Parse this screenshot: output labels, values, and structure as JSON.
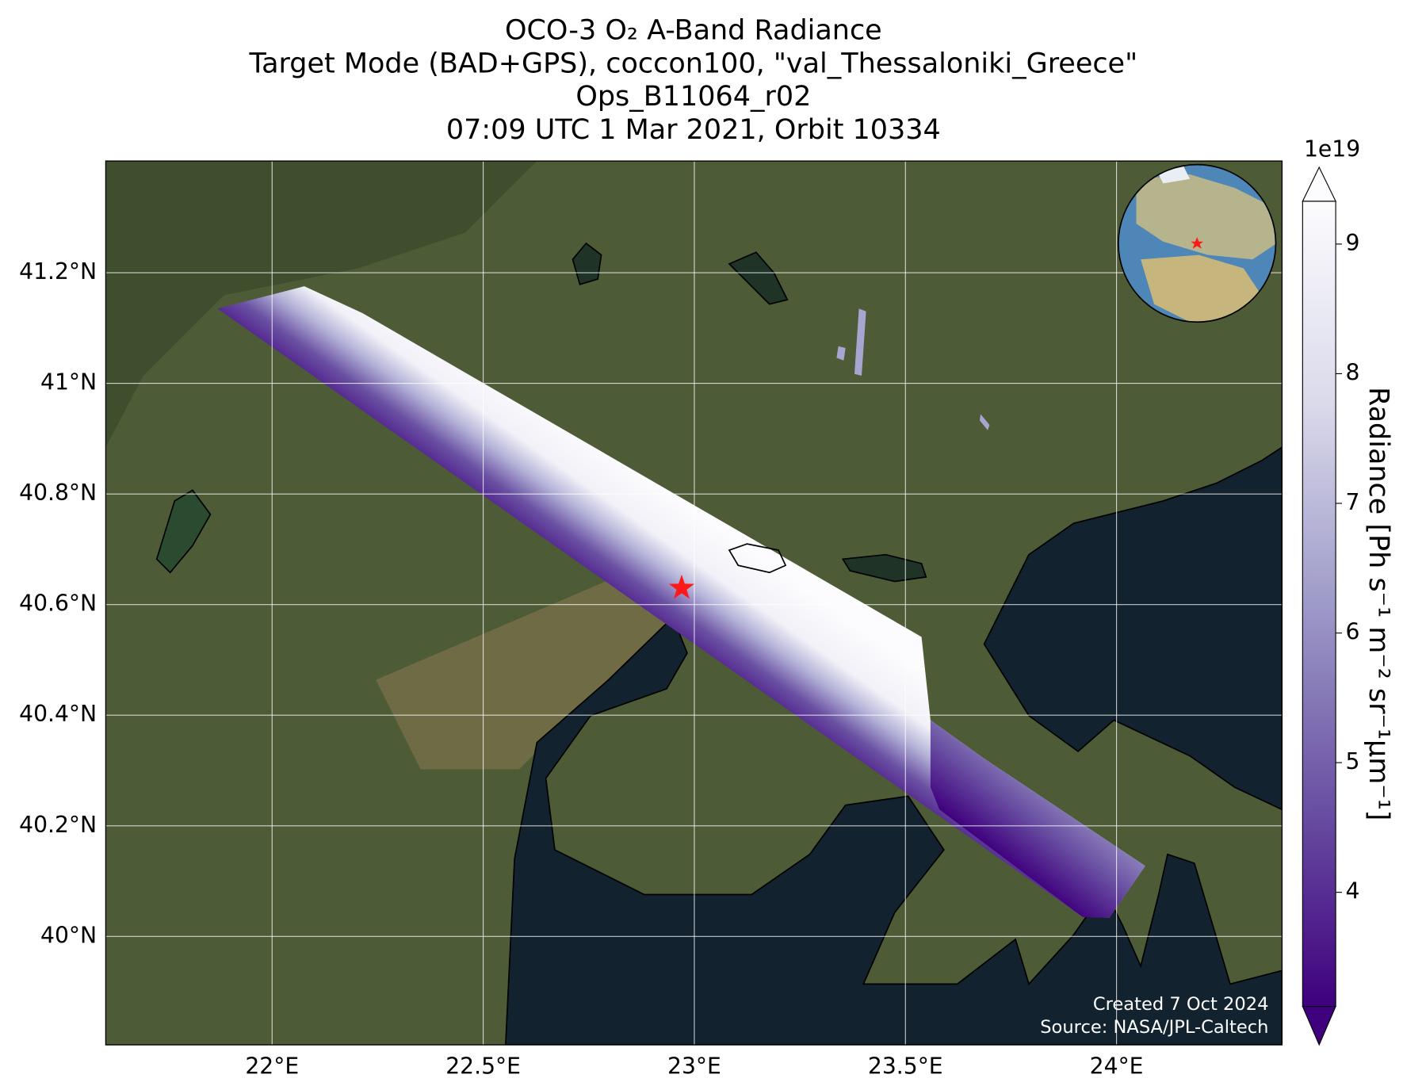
{
  "chart_data": {
    "type": "map",
    "title": [
      "OCO-3 O₂ A-Band Radiance",
      "Target Mode (BAD+GPS), coccon100, \"val_Thessaloniki_Greece\"",
      "Ops_B11064_r02",
      "07:09 UTC 1 Mar 2021, Orbit 10334"
    ],
    "xlim": [
      21.606,
      24.392
    ],
    "ylim": [
      39.804,
      41.402
    ],
    "xticks": [
      {
        "value": 22,
        "label": "22°E"
      },
      {
        "value": 22.5,
        "label": "22.5°E"
      },
      {
        "value": 23,
        "label": "23°E"
      },
      {
        "value": 23.5,
        "label": "23.5°E"
      },
      {
        "value": 24,
        "label": "24°E"
      }
    ],
    "yticks": [
      {
        "value": 40,
        "label": "40°N"
      },
      {
        "value": 40.2,
        "label": "40.2°N"
      },
      {
        "value": 40.4,
        "label": "40.4°N"
      },
      {
        "value": 40.6,
        "label": "40.6°N"
      },
      {
        "value": 40.8,
        "label": "40.8°N"
      },
      {
        "value": 41,
        "label": "41°N"
      },
      {
        "value": 41.2,
        "label": "41.2°N"
      }
    ],
    "grid": true,
    "site": {
      "lon": 22.97,
      "lat": 40.63,
      "color": "#ff1a1a"
    },
    "colorbar": {
      "label": "Radiance [Ph s⁻¹ m⁻² sr⁻¹μm⁻¹]",
      "offset_label": "1e19",
      "lim": [
        3.12,
        9.33
      ],
      "ticks": [
        4,
        5,
        6,
        7,
        8,
        9
      ],
      "extend": "both",
      "colors": [
        "#3f007d",
        "#6a51a3",
        "#9e9ac8",
        "#dadaeb",
        "#fcfbfd"
      ]
    },
    "notes": [
      "Created 7 Oct 2024",
      "Source: NASA/JPL-Caltech"
    ]
  }
}
